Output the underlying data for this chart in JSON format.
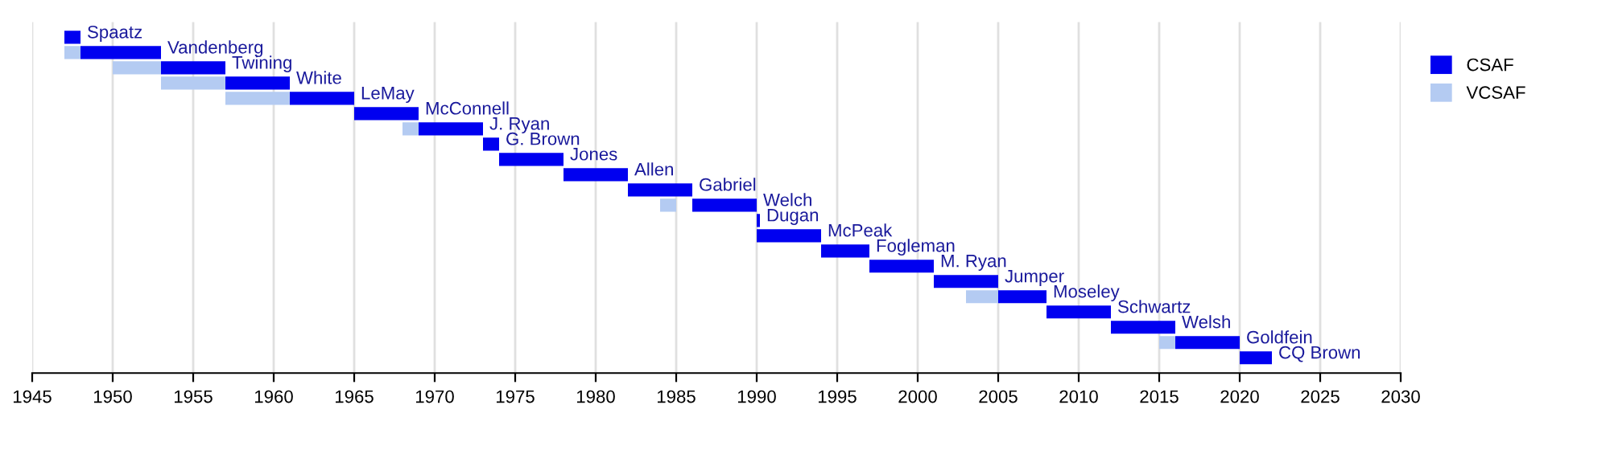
{
  "chart_data": {
    "type": "bar",
    "orientation": "horizontal",
    "categories": [
      null,
      null,
      null,
      null,
      null,
      null,
      null,
      null,
      null,
      null,
      null,
      null,
      null,
      null,
      null,
      null,
      null,
      null,
      null,
      null,
      null,
      null
    ],
    "series": [
      {
        "name": "CSAF",
        "color": "#0000f0",
        "base": [
          1947,
          1948,
          1953,
          1957,
          1961,
          1965,
          1969,
          1973,
          1974,
          1978,
          1982,
          1986,
          1990,
          1990,
          1994,
          1997,
          2001,
          2005,
          2008,
          2012,
          2016,
          2020
        ],
        "values": [
          1,
          5,
          4,
          4,
          4,
          4,
          4,
          1,
          4,
          4,
          4,
          4,
          0.2,
          4,
          3,
          4,
          4,
          3,
          4,
          4,
          4,
          2
        ],
        "value_labels": [
          "Spaatz",
          "Vandenberg",
          "Twining",
          "White",
          "LeMay",
          "McConnell",
          "J. Ryan",
          "G. Brown",
          "Jones",
          "Allen",
          "Gabriel",
          "Welch",
          "Dugan",
          "McPeak",
          "Fogleman",
          "M. Ryan",
          "Jumper",
          "Moseley",
          "Schwartz",
          "Welsh",
          "Goldfein",
          "CQ Brown"
        ]
      },
      {
        "name": "VCSAF",
        "color": "#b4cbf2",
        "base": [
          null,
          1947,
          1950,
          1953,
          1957,
          null,
          1968,
          null,
          null,
          null,
          null,
          1984,
          null,
          null,
          null,
          null,
          null,
          2003,
          null,
          null,
          2015,
          null
        ],
        "values": [
          null,
          1,
          3,
          4,
          4,
          null,
          1,
          null,
          null,
          null,
          null,
          1,
          null,
          null,
          null,
          null,
          null,
          2,
          null,
          null,
          1,
          null
        ]
      }
    ],
    "xlim": [
      1945,
      2030
    ],
    "xticks": [
      1945,
      1950,
      1955,
      1960,
      1965,
      1970,
      1975,
      1980,
      1985,
      1990,
      1995,
      2000,
      2005,
      2010,
      2015,
      2020,
      2025,
      2030
    ],
    "grid": "x",
    "legend": "top right",
    "tick_labels": "x"
  }
}
